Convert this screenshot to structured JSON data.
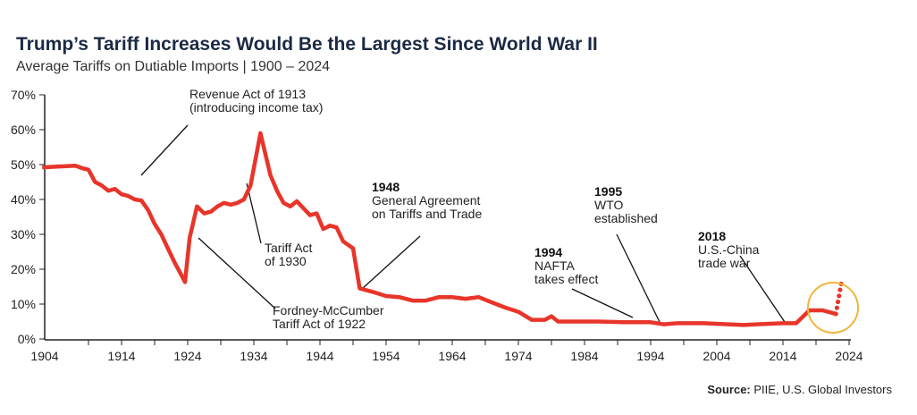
{
  "title": "Trump’s Tariff Increases Would Be the Largest Since World War II",
  "subtitle": "Average Tariffs on Dutiable Imports | 1900 – 2024",
  "source_label": "Source:",
  "source_text": " PIIE, U.S. Global Investors",
  "colors": {
    "line": "#e8352a",
    "highlight_circle": "#f2b53a",
    "title": "#1b2a44"
  },
  "chart_data": {
    "type": "line",
    "title": "Trump’s Tariff Increases Would Be the Largest Since World War II",
    "subtitle": "Average Tariffs on Dutiable Imports | 1900 – 2024",
    "xlim": [
      1904,
      2024
    ],
    "ylim": [
      0,
      70
    ],
    "x_ticks": [
      "1904",
      "1914",
      "1924",
      "1934",
      "1944",
      "1954",
      "1964",
      "1974",
      "1984",
      "1994",
      "2004",
      "2014",
      "2024"
    ],
    "y_ticks": [
      "0%",
      "10%",
      "20%",
      "30%",
      "40%",
      "50%",
      "60%",
      "70%"
    ],
    "grid": false,
    "series": [
      {
        "style": "solid",
        "x": [
          1902,
          1905,
          1907,
          1908,
          1909,
          1910,
          1911,
          1912,
          1913,
          1914,
          1915,
          1916,
          1917,
          1918,
          1919,
          1920,
          1921,
          1922,
          1923,
          1923.6,
          1924.3,
          1925.4,
          1926.5,
          1927.5,
          1928.5,
          1929.5,
          1930.5,
          1931.5,
          1932.5,
          1933.5,
          1935,
          1936.5,
          1937.5,
          1938.5,
          1939.5,
          1940.5,
          1941.5,
          1942.5,
          1943.5,
          1944.5,
          1945.5,
          1946.5,
          1947.5,
          1949,
          1950,
          1952,
          1954,
          1956,
          1958,
          1960,
          1962,
          1964,
          1966,
          1968,
          1970,
          1972,
          1974,
          1976,
          1978,
          1979,
          1980,
          1982,
          1986,
          1990,
          1994,
          1996,
          1998,
          2002,
          2008,
          2010,
          2014,
          2016,
          2018,
          2020,
          2022
        ],
        "y": [
          49.2,
          49.5,
          49.7,
          49,
          48.5,
          45,
          44,
          42.5,
          43,
          41.5,
          41,
          40,
          39.7,
          37,
          33,
          30,
          26,
          22,
          18.5,
          16.3,
          29,
          38,
          36,
          36.5,
          38,
          39,
          38.5,
          39,
          40,
          44,
          59,
          47,
          42.5,
          39,
          38,
          39.5,
          37.5,
          35.5,
          36,
          31.5,
          32.5,
          32,
          28,
          26,
          14.5,
          13.5,
          12.3,
          12,
          11,
          11,
          12,
          12,
          11.5,
          12,
          10.5,
          9,
          7.8,
          5.5,
          5.5,
          6.5,
          5,
          5,
          5,
          4.8,
          4.8,
          4.2,
          4.5,
          4.5,
          4,
          4.2,
          4.5,
          4.5,
          8.2,
          8.2,
          7.2
        ]
      },
      {
        "style": "dotted",
        "x": [
          2022,
          2022.8
        ],
        "y": [
          7.2,
          15.8
        ]
      }
    ],
    "annotations": [
      {
        "year": "",
        "text": [
          "Revenue Act of 1913",
          "(introducing income tax)"
        ]
      },
      {
        "year": "",
        "text": [
          "Fordney-McCumber",
          "Tariff Act of 1922"
        ]
      },
      {
        "year": "",
        "text": [
          "Tariff Act",
          "of 1930"
        ]
      },
      {
        "year": "1948",
        "text": [
          "General Agreement",
          "on Tariffs and Trade"
        ]
      },
      {
        "year": "1994",
        "text": [
          "NAFTA",
          "takes effect"
        ]
      },
      {
        "year": "1995",
        "text": [
          "WTO",
          "established"
        ]
      },
      {
        "year": "2018",
        "text": [
          "U.S.-China",
          "trade war"
        ]
      }
    ]
  }
}
